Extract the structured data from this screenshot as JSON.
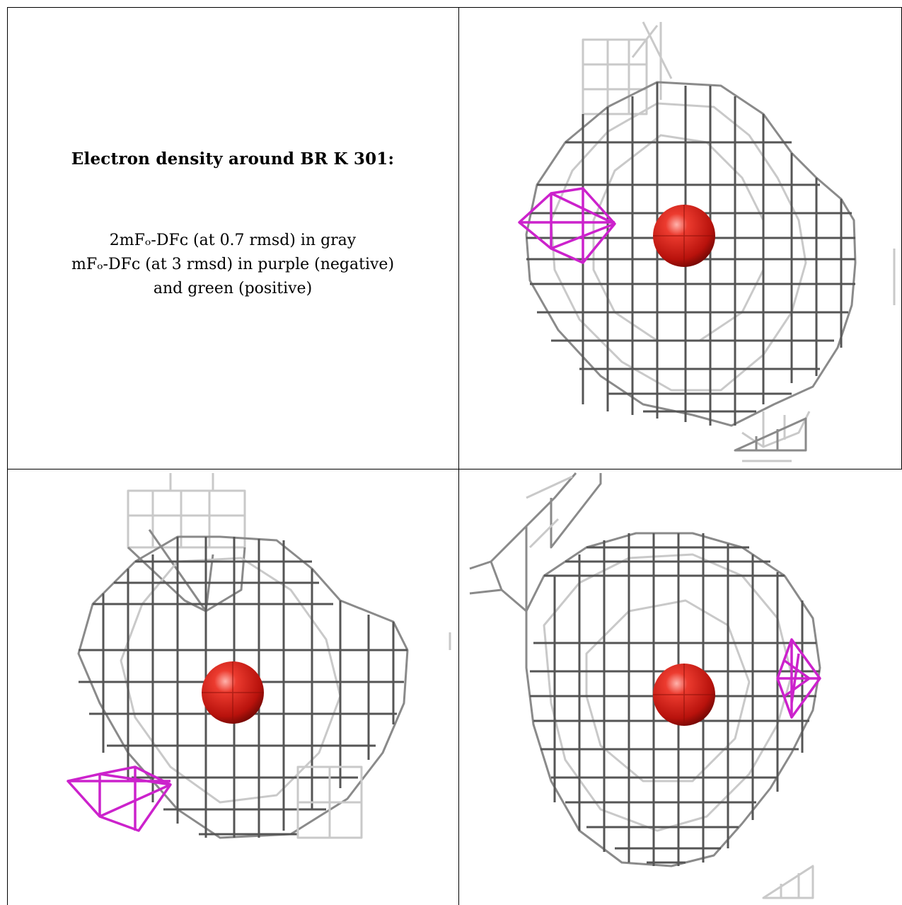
{
  "caption": {
    "title": "Electron density around BR K 301:",
    "lines": [
      "2mFₒ-DFᴄ (at 0.7 rmsd) in gray",
      "mFₒ-DFᴄ (at 3 rmsd) in purple (negative)",
      "and green (positive)"
    ]
  },
  "colors": {
    "mesh_gray": "#8a8a8a",
    "mesh_dark": "#555555",
    "mesh_light": "#c9c9c9",
    "negative_density": "#cc22cc",
    "atom": "#d8261c",
    "border": "#000000"
  },
  "panels": [
    {
      "name": "view-1",
      "shows": [
        "gray-mesh",
        "purple-mesh",
        "red-atom"
      ]
    },
    {
      "name": "view-2",
      "shows": [
        "gray-mesh",
        "purple-mesh",
        "red-atom"
      ]
    },
    {
      "name": "view-3",
      "shows": [
        "gray-mesh",
        "purple-mesh",
        "red-atom"
      ]
    }
  ]
}
